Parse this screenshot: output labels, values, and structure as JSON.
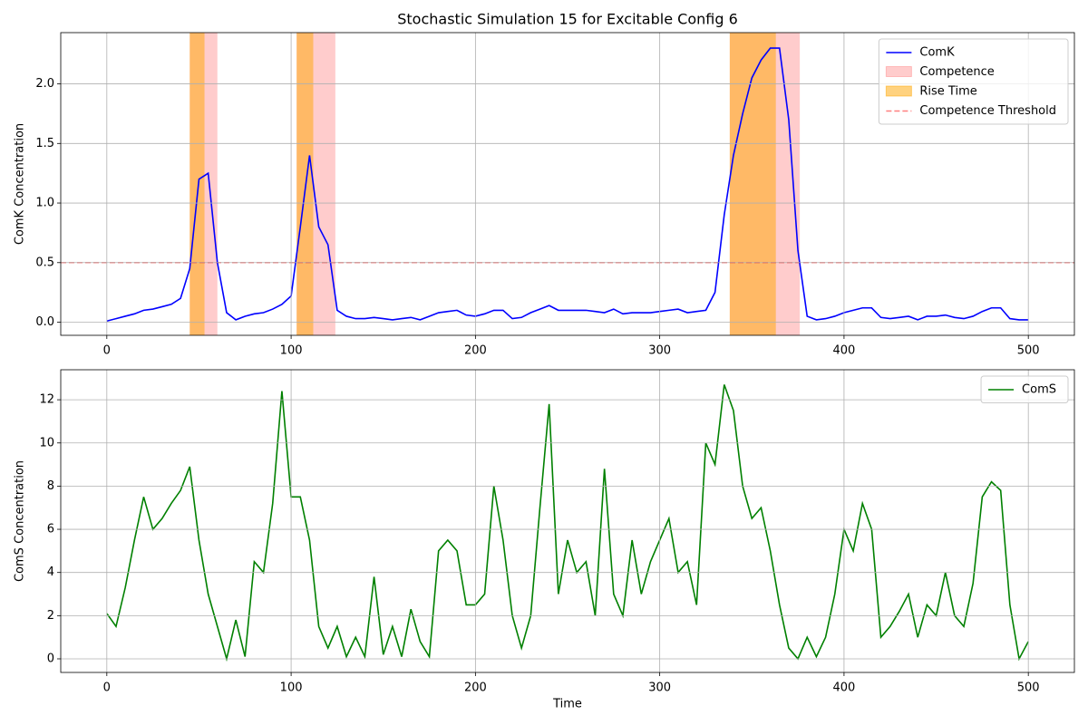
{
  "chart_data": [
    {
      "type": "line",
      "title": "Stochastic Simulation 15 for Excitable Config 6",
      "ylabel": "ComK Concentration",
      "x": [
        0,
        5,
        10,
        15,
        20,
        25,
        30,
        35,
        40,
        45,
        50,
        55,
        60,
        65,
        70,
        75,
        80,
        85,
        90,
        95,
        100,
        105,
        110,
        115,
        120,
        125,
        130,
        135,
        140,
        145,
        150,
        155,
        160,
        165,
        170,
        175,
        180,
        185,
        190,
        195,
        200,
        205,
        210,
        215,
        220,
        225,
        230,
        235,
        240,
        245,
        250,
        255,
        260,
        265,
        270,
        275,
        280,
        285,
        290,
        295,
        300,
        305,
        310,
        315,
        320,
        325,
        330,
        335,
        340,
        345,
        350,
        355,
        360,
        365,
        370,
        375,
        380,
        385,
        390,
        395,
        400,
        405,
        410,
        415,
        420,
        425,
        430,
        435,
        440,
        445,
        450,
        455,
        460,
        465,
        470,
        475,
        480,
        485,
        490,
        495,
        500
      ],
      "series": [
        {
          "name": "ComK",
          "color": "#0000ff",
          "values": [
            0.01,
            0.03,
            0.05,
            0.07,
            0.1,
            0.11,
            0.13,
            0.15,
            0.2,
            0.45,
            1.2,
            1.25,
            0.5,
            0.08,
            0.02,
            0.05,
            0.07,
            0.08,
            0.11,
            0.15,
            0.22,
            0.8,
            1.4,
            0.8,
            0.65,
            0.1,
            0.05,
            0.03,
            0.03,
            0.04,
            0.03,
            0.02,
            0.03,
            0.04,
            0.02,
            0.05,
            0.08,
            0.09,
            0.1,
            0.06,
            0.05,
            0.07,
            0.1,
            0.1,
            0.03,
            0.04,
            0.08,
            0.11,
            0.14,
            0.1,
            0.1,
            0.1,
            0.1,
            0.09,
            0.08,
            0.11,
            0.07,
            0.08,
            0.08,
            0.08,
            0.09,
            0.1,
            0.11,
            0.08,
            0.09,
            0.1,
            0.25,
            0.9,
            1.4,
            1.75,
            2.05,
            2.2,
            2.3,
            2.3,
            1.7,
            0.6,
            0.05,
            0.02,
            0.03,
            0.05,
            0.08,
            0.1,
            0.12,
            0.12,
            0.04,
            0.03,
            0.04,
            0.05,
            0.02,
            0.05,
            0.05,
            0.06,
            0.04,
            0.03,
            0.05,
            0.09,
            0.12,
            0.12,
            0.03,
            0.02,
            0.02
          ]
        }
      ],
      "spans": [
        {
          "name": "Competence",
          "color": "#ff0000",
          "alpha": 0.2,
          "ranges": [
            [
              45,
              60
            ],
            [
              103,
              124
            ],
            [
              338,
              376
            ]
          ]
        },
        {
          "name": "Rise Time",
          "color": "#ffa500",
          "alpha": 0.5,
          "ranges": [
            [
              45,
              53
            ],
            [
              103,
              112
            ],
            [
              338,
              363
            ]
          ]
        }
      ],
      "hlines": [
        {
          "name": "Competence Threshold",
          "value": 0.5,
          "color": "#ff0000",
          "alpha": 0.5
        }
      ],
      "xlim": [
        -25,
        525
      ],
      "xticks": [
        0,
        100,
        200,
        300,
        400,
        500
      ],
      "ylim": [
        -0.11,
        2.43
      ],
      "yticks": [
        {
          "value": 0,
          "label": "0.0"
        },
        {
          "value": 0.5,
          "label": "0.5"
        },
        {
          "value": 1,
          "label": "1.0"
        },
        {
          "value": 1.5,
          "label": "1.5"
        },
        {
          "value": 2,
          "label": "2.0"
        }
      ],
      "grid": true,
      "legend": "upper right"
    },
    {
      "type": "line",
      "xlabel": "Time",
      "ylabel": "ComS Concentration",
      "x": [
        0,
        5,
        10,
        15,
        20,
        25,
        30,
        35,
        40,
        45,
        50,
        55,
        60,
        65,
        70,
        75,
        80,
        85,
        90,
        95,
        100,
        105,
        110,
        115,
        120,
        125,
        130,
        135,
        140,
        145,
        150,
        155,
        160,
        165,
        170,
        175,
        180,
        185,
        190,
        195,
        200,
        205,
        210,
        215,
        220,
        225,
        230,
        235,
        240,
        245,
        250,
        255,
        260,
        265,
        270,
        275,
        280,
        285,
        290,
        295,
        300,
        305,
        310,
        315,
        320,
        325,
        330,
        335,
        340,
        345,
        350,
        355,
        360,
        365,
        370,
        375,
        380,
        385,
        390,
        395,
        400,
        405,
        410,
        415,
        420,
        425,
        430,
        435,
        440,
        445,
        450,
        455,
        460,
        465,
        470,
        475,
        480,
        485,
        490,
        495,
        500
      ],
      "series": [
        {
          "name": "ComS",
          "color": "#008000",
          "values": [
            2.1,
            1.5,
            3.3,
            5.5,
            7.5,
            6.0,
            6.5,
            7.2,
            7.8,
            8.9,
            5.5,
            3.0,
            1.5,
            0.0,
            1.8,
            0.1,
            4.5,
            4.0,
            7.2,
            12.4,
            7.5,
            7.5,
            5.5,
            1.5,
            0.5,
            1.5,
            0.1,
            1.0,
            0.1,
            3.8,
            0.2,
            1.5,
            0.1,
            2.3,
            0.8,
            0.1,
            5.0,
            5.5,
            5.0,
            2.5,
            2.5,
            3.0,
            8.0,
            5.5,
            2.0,
            0.5,
            2.0,
            7.0,
            11.8,
            3.0,
            5.5,
            4.0,
            4.5,
            2.0,
            8.8,
            3.0,
            2.0,
            5.5,
            3.0,
            4.5,
            5.5,
            6.5,
            4.0,
            4.5,
            2.5,
            10.0,
            9.0,
            12.7,
            11.5,
            8.0,
            6.5,
            7.0,
            5.0,
            2.5,
            0.5,
            0.0,
            1.0,
            0.1,
            1.0,
            3.0,
            6.0,
            5.0,
            7.2,
            6.0,
            1.0,
            1.5,
            2.2,
            3.0,
            1.0,
            2.5,
            2.0,
            4.0,
            2.0,
            1.5,
            3.5,
            7.5,
            8.2,
            7.8,
            2.5,
            0.0,
            0.8
          ]
        }
      ],
      "xlim": [
        -25,
        525
      ],
      "xticks": [
        0,
        100,
        200,
        300,
        400,
        500
      ],
      "ylim": [
        -0.63,
        13.39
      ],
      "yticks": [
        0,
        2,
        4,
        6,
        8,
        10,
        12
      ],
      "grid": true,
      "legend": "upper right"
    }
  ]
}
